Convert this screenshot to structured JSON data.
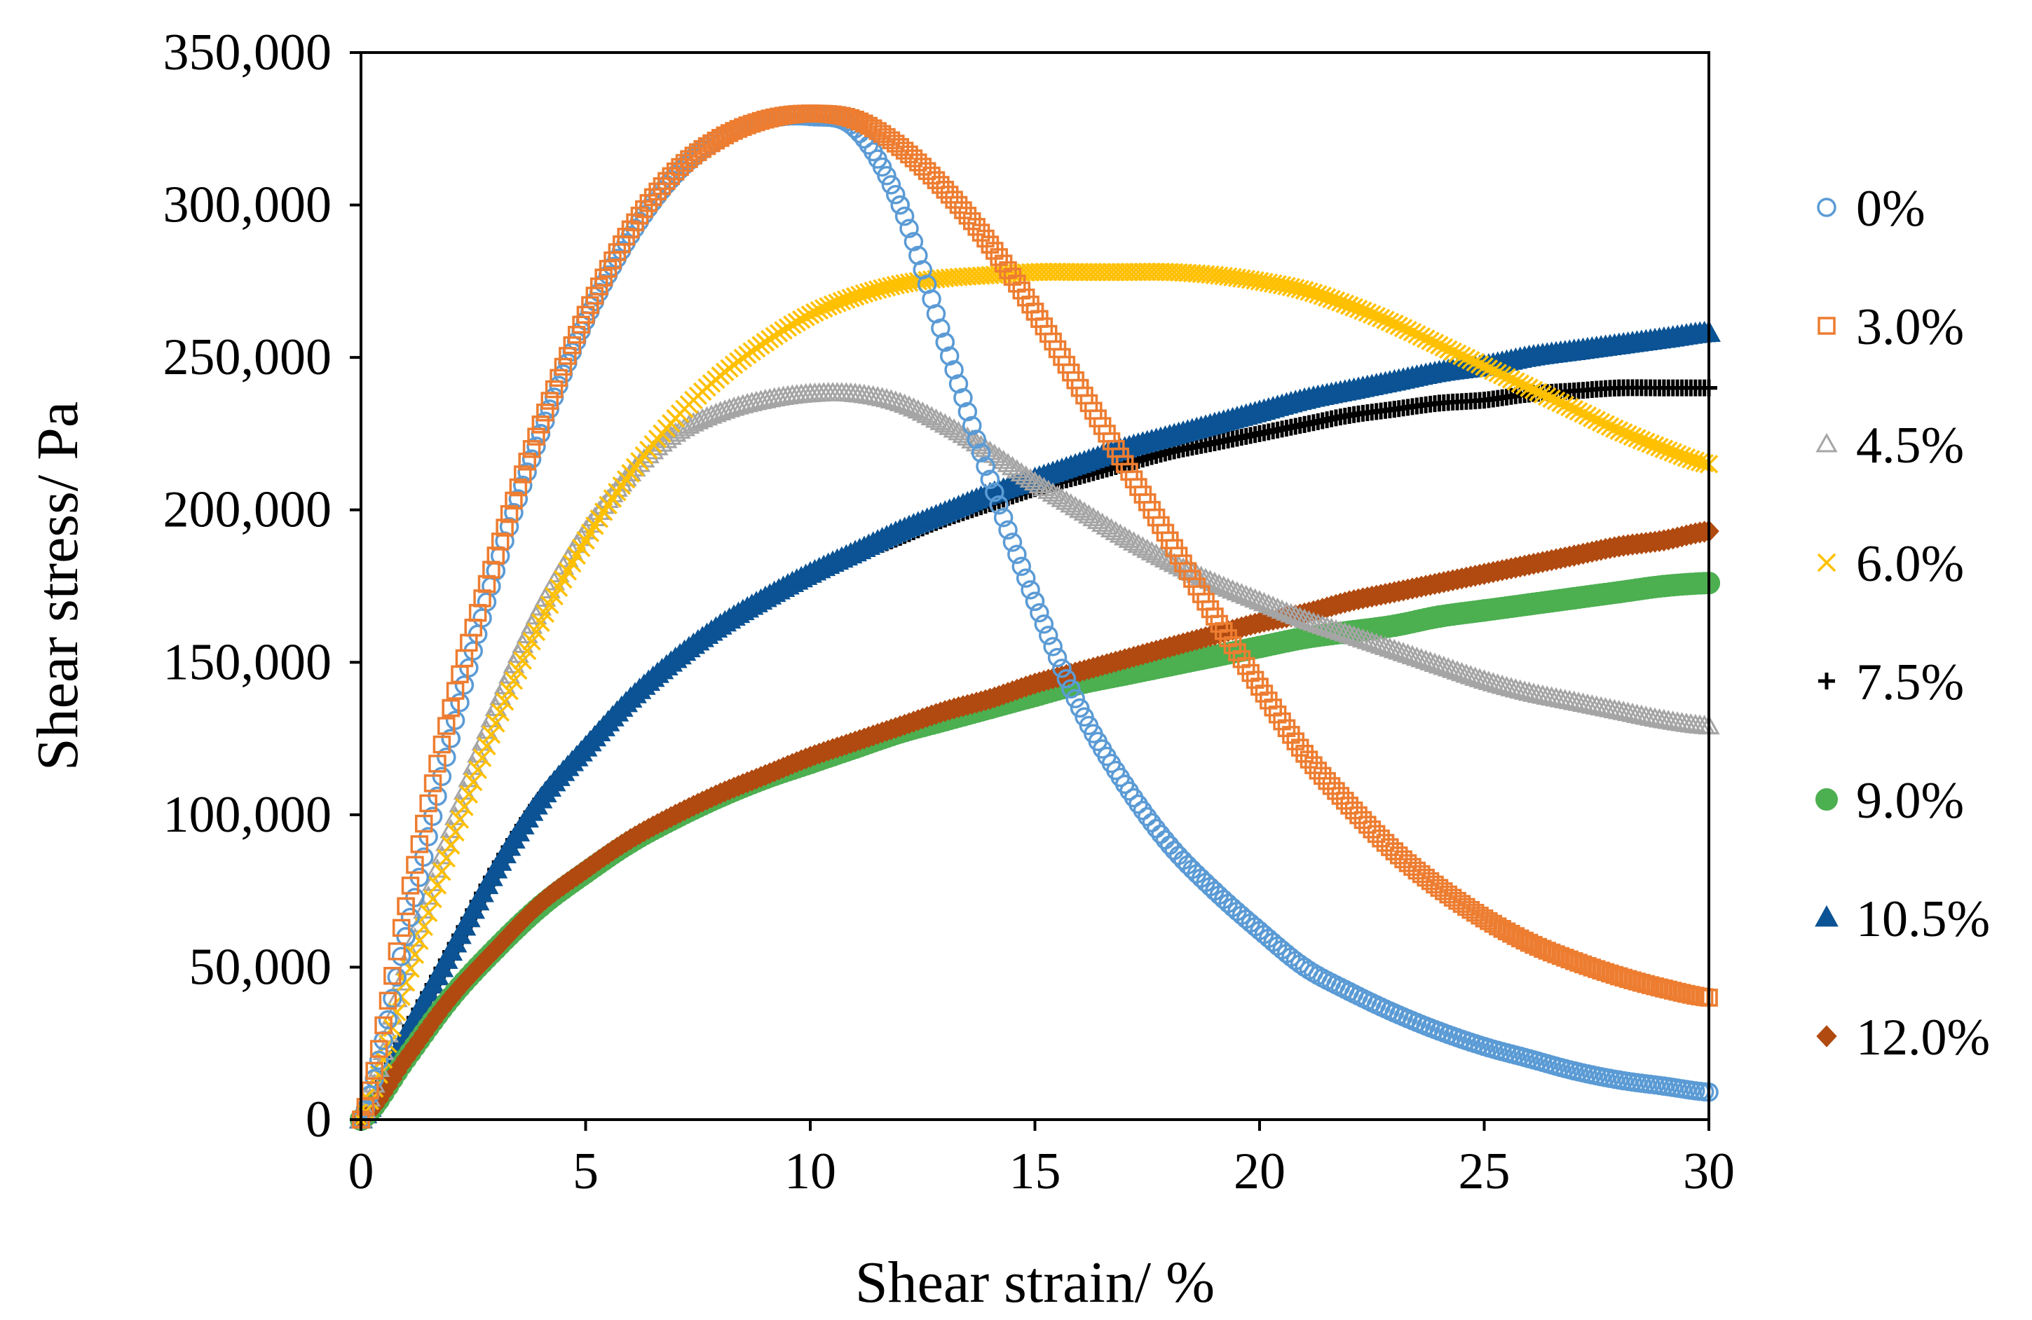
{
  "chart_data": {
    "type": "scatter",
    "title": "",
    "xlabel": "Shear strain/ %",
    "ylabel": "Shear stress/ Pa",
    "xlim": [
      0,
      30
    ],
    "ylim": [
      0,
      350000
    ],
    "xticks": [
      0,
      5,
      10,
      15,
      20,
      25,
      30
    ],
    "yticks": [
      0,
      50000,
      100000,
      150000,
      200000,
      250000,
      300000,
      350000
    ],
    "xtick_labels": [
      "0",
      "5",
      "10",
      "15",
      "20",
      "25",
      "30"
    ],
    "ytick_labels": [
      "0",
      "50,000",
      "100,000",
      "150,000",
      "200,000",
      "250,000",
      "300,000",
      "350,000"
    ],
    "grid": false,
    "legend_position": "right",
    "x": [
      0,
      1,
      2,
      3,
      4,
      5,
      6,
      7,
      8,
      9,
      10,
      11,
      12,
      13,
      14,
      15,
      16,
      17,
      18,
      19,
      20,
      21,
      22,
      23,
      24,
      25,
      26,
      27,
      28,
      29,
      30
    ],
    "series": [
      {
        "name": "0%",
        "marker": "circle-open",
        "color": "#5B9BD5",
        "values": [
          0,
          60000,
          125000,
          180000,
          225000,
          262000,
          290000,
          310000,
          322000,
          328000,
          329000,
          325000,
          300000,
          255000,
          210000,
          170000,
          135000,
          110000,
          90000,
          75000,
          62000,
          50000,
          42000,
          35000,
          29000,
          24000,
          20000,
          16000,
          13000,
          11000,
          9000
        ]
      },
      {
        "name": "3.0%",
        "marker": "square-open",
        "color": "#ED7D31",
        "values": [
          0,
          70000,
          135000,
          185000,
          228000,
          264000,
          292000,
          311000,
          322000,
          328000,
          330000,
          328000,
          319000,
          305000,
          287000,
          265000,
          240000,
          215000,
          190000,
          165000,
          142000,
          120000,
          103000,
          88000,
          76000,
          66000,
          58000,
          52000,
          47000,
          43000,
          40000
        ]
      },
      {
        "name": "4.5%",
        "marker": "triangle-open",
        "color": "#A5A5A5",
        "values": [
          0,
          50000,
          95000,
          135000,
          168000,
          193000,
          212000,
          225000,
          232000,
          236000,
          238000,
          238000,
          235000,
          228000,
          219000,
          209000,
          200000,
          191000,
          183000,
          176000,
          170000,
          164000,
          159000,
          154000,
          149000,
          144000,
          140000,
          137000,
          134000,
          131000,
          129000
        ]
      },
      {
        "name": "6.0%",
        "marker": "x",
        "color": "#FFC000",
        "values": [
          0,
          45000,
          90000,
          130000,
          163000,
          190000,
          212000,
          230000,
          244000,
          255000,
          264000,
          270000,
          274000,
          276000,
          277000,
          278000,
          278000,
          278000,
          278000,
          277000,
          275000,
          272000,
          267000,
          261000,
          254000,
          247000,
          240000,
          233000,
          226000,
          220000,
          215000
        ]
      },
      {
        "name": "7.5%",
        "marker": "plus",
        "color": "#000000",
        "values": [
          0,
          28000,
          55000,
          82000,
          105000,
          122000,
          138000,
          151000,
          162000,
          171000,
          178000,
          185000,
          191000,
          197000,
          202000,
          207000,
          211000,
          215000,
          219000,
          222000,
          225000,
          228000,
          231000,
          233000,
          235000,
          236000,
          238000,
          239000,
          240000,
          240000,
          240000
        ]
      },
      {
        "name": "9.0%",
        "marker": "circle-filled",
        "color": "#4CAF50",
        "values": [
          0,
          20000,
          40000,
          56000,
          70000,
          81000,
          91000,
          99000,
          106000,
          112000,
          117000,
          122000,
          127000,
          131000,
          135000,
          139000,
          143000,
          146000,
          149000,
          152000,
          155000,
          158000,
          160000,
          162000,
          165000,
          167000,
          169000,
          171000,
          173000,
          175000,
          176000
        ]
      },
      {
        "name": "10.5%",
        "marker": "triangle-filled",
        "color": "#0B5394",
        "values": [
          0,
          28000,
          55000,
          82000,
          105000,
          122000,
          138000,
          151000,
          162000,
          171000,
          179000,
          186000,
          193000,
          199000,
          205000,
          210000,
          215000,
          220000,
          224000,
          228000,
          232000,
          236000,
          239000,
          242000,
          245000,
          247000,
          250000,
          252000,
          254000,
          256000,
          258000
        ]
      },
      {
        "name": "12.0%",
        "marker": "diamond-filled",
        "color": "#B04A10",
        "values": [
          0,
          20000,
          40000,
          56000,
          71000,
          82000,
          92000,
          100000,
          107000,
          113000,
          119000,
          124000,
          129000,
          134000,
          138000,
          143000,
          147000,
          151000,
          155000,
          159000,
          163000,
          166000,
          170000,
          173000,
          176000,
          179000,
          182000,
          185000,
          188000,
          190000,
          193000
        ]
      }
    ]
  }
}
